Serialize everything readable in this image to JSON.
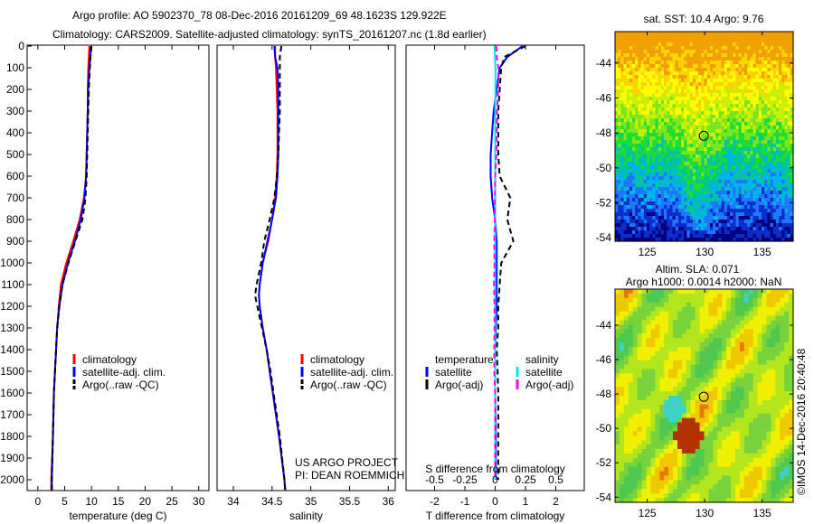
{
  "title_line1": "Argo profile: AO 5902370_78 08-Dec-2016 20161209_69 48.1623S 129.922E",
  "title_line2": "Climatology: CARS2009. Satellite-adjusted climatology: synTS_20161207.nc (1.8d earlier)",
  "credit": "©IMOS 14-Dec-2016 20:40:48",
  "project_line1": "US ARGO PROJECT",
  "project_line2": "PI: DEAN ROEMMICH",
  "colors": {
    "climatology": "#ff0000",
    "satellite": "#0000ff",
    "argo": "#000000",
    "sal_satellite": "#00e5ee",
    "sal_argo": "#ff00ff"
  },
  "chart_data": [
    {
      "type": "line",
      "name": "temperature",
      "xlabel": "temperature (deg C)",
      "ylabel": "",
      "xlim": [
        -2,
        31.9
      ],
      "ylim": [
        2050,
        0
      ],
      "xticks": [
        0,
        5,
        10,
        15,
        20,
        25,
        30
      ],
      "yticks": [
        0,
        100,
        200,
        300,
        400,
        500,
        600,
        700,
        800,
        900,
        1000,
        1100,
        1200,
        1300,
        1400,
        1500,
        1600,
        1700,
        1800,
        1900,
        2000
      ],
      "legend": [
        "climatology",
        "satellite-adj. clim.",
        "Argo(..raw -QC)"
      ],
      "legend_placement": "lower-center",
      "depth": [
        0,
        50,
        100,
        200,
        300,
        400,
        500,
        600,
        700,
        800,
        900,
        1000,
        1100,
        1200,
        1300,
        1400,
        1500,
        1600,
        1800,
        2000,
        2050
      ],
      "series": [
        {
          "name": "climatology",
          "color": "#ff0000",
          "dash": false,
          "values": [
            9.6,
            9.5,
            9.4,
            9.3,
            9.3,
            9.2,
            9.1,
            9.0,
            8.6,
            7.8,
            6.6,
            5.3,
            4.3,
            3.9,
            3.6,
            3.4,
            3.2,
            3.0,
            2.8,
            2.5,
            2.5
          ]
        },
        {
          "name": "satellite-adj. clim.",
          "color": "#0000ff",
          "dash": false,
          "values": [
            9.9,
            9.8,
            9.6,
            9.4,
            9.3,
            9.2,
            9.1,
            9.0,
            8.7,
            8.0,
            6.9,
            5.6,
            4.6,
            4.0,
            3.6,
            3.4,
            3.2,
            3.0,
            2.8,
            2.6,
            2.6
          ]
        },
        {
          "name": "Argo(..raw -QC)",
          "color": "#000000",
          "dash": true,
          "values": [
            10.0,
            9.8,
            9.7,
            9.5,
            9.4,
            9.3,
            9.2,
            9.1,
            8.9,
            8.3,
            7.0,
            5.7,
            4.6,
            4.0,
            3.6,
            3.4,
            3.2,
            3.0,
            2.8,
            2.6,
            2.6
          ]
        }
      ]
    },
    {
      "type": "line",
      "name": "salinity",
      "xlabel": "salinity",
      "ylabel": "",
      "xlim": [
        33.79,
        36.09
      ],
      "ylim": [
        2050,
        0
      ],
      "xticks": [
        34,
        34.5,
        35,
        35.5,
        36
      ],
      "legend": [
        "climatology",
        "satellite-adj. clim.",
        "Argo(..raw -QC)"
      ],
      "legend_placement": "lower-center",
      "depth": [
        0,
        50,
        100,
        200,
        300,
        400,
        500,
        600,
        700,
        800,
        900,
        1000,
        1100,
        1150,
        1200,
        1300,
        1400,
        1500,
        1600,
        1800,
        2000,
        2050
      ],
      "series": [
        {
          "name": "climatology",
          "color": "#ff0000",
          "dash": false,
          "values": [
            34.54,
            34.54,
            34.55,
            34.56,
            34.57,
            34.57,
            34.57,
            34.56,
            34.54,
            34.5,
            34.45,
            34.38,
            34.34,
            34.33,
            34.34,
            34.38,
            34.43,
            34.47,
            34.51,
            34.59,
            34.66,
            34.67
          ]
        },
        {
          "name": "satellite-adj. clim.",
          "color": "#0000ff",
          "dash": false,
          "values": [
            34.53,
            34.54,
            34.57,
            34.58,
            34.58,
            34.58,
            34.58,
            34.57,
            34.55,
            34.5,
            34.44,
            34.38,
            34.34,
            34.33,
            34.34,
            34.38,
            34.43,
            34.47,
            34.51,
            34.59,
            34.66,
            34.67
          ]
        },
        {
          "name": "Argo(..raw -QC)",
          "color": "#000000",
          "dash": true,
          "values": [
            34.62,
            34.6,
            34.6,
            34.6,
            34.6,
            34.59,
            34.58,
            34.56,
            34.53,
            34.47,
            34.4,
            34.36,
            34.3,
            34.28,
            34.31,
            34.37,
            34.43,
            34.48,
            34.52,
            34.6,
            34.66,
            34.67
          ]
        }
      ]
    },
    {
      "type": "line",
      "name": "differences",
      "xlabel": "T difference from climatology",
      "xlabel2": "S difference from climatology",
      "xlim": [
        -2.94,
        2.94
      ],
      "ylim": [
        2050,
        0
      ],
      "xticks": [
        -2,
        -1,
        0,
        1,
        2
      ],
      "xticks2": [
        "-0.5",
        "-0.25",
        "0",
        "0.25",
        "0.5"
      ],
      "xticks2_values": [
        -0.5,
        -0.25,
        0,
        0.25,
        0.5
      ],
      "legend_headers": [
        "temperature",
        "salinity"
      ],
      "legend": [
        "satellite",
        "Argo(-adj)",
        "satellite",
        "Argo(-adj)"
      ],
      "legend_placement": "lower-center",
      "depth": [
        0,
        50,
        100,
        200,
        300,
        400,
        500,
        600,
        700,
        800,
        900,
        1000,
        1100,
        1200,
        1300,
        1400,
        1500,
        1600,
        1800,
        2000
      ],
      "series": [
        {
          "name": "temperature satellite",
          "color": "#0000ff",
          "dash": false,
          "values": [
            0.9,
            0.4,
            0.15,
            0.05,
            -0.05,
            -0.1,
            -0.15,
            -0.15,
            -0.1,
            0.0,
            0.05,
            0.05,
            0.05,
            0.05,
            0.02,
            0.0,
            0.0,
            0.0,
            0.02,
            0.02
          ]
        },
        {
          "name": "temperature Argo(-adj)",
          "color": "#000000",
          "dash": true,
          "values": [
            1.0,
            0.3,
            0.2,
            0.15,
            0.1,
            0.1,
            0.1,
            0.15,
            0.5,
            0.4,
            0.6,
            0.2,
            0.15,
            0.1,
            0.1,
            0.05,
            0.08,
            0.1,
            0.1,
            0.1
          ]
        },
        {
          "name": "salinity satellite",
          "color": "#00e5ee",
          "dash": false,
          "values": [
            -0.02,
            -0.01,
            0.01,
            0.01,
            0.0,
            0.0,
            0.0,
            0.0,
            0.0,
            0.0,
            0.0,
            0.0,
            0.0,
            0.0,
            0.0,
            0.0,
            0.0,
            0.0,
            0.0,
            0.0
          ]
        },
        {
          "name": "salinity Argo(-adj)",
          "color": "#ff00ff",
          "dash": true,
          "values": [
            0.04,
            0.05,
            0.1,
            0.1,
            0.06,
            0.05,
            0.04,
            0.0,
            -0.01,
            -0.01,
            -0.03,
            -0.02,
            -0.04,
            -0.02,
            -0.02,
            -0.03,
            -0.03,
            0.0,
            0.0,
            0.0
          ]
        }
      ]
    },
    {
      "type": "heatmap",
      "name": "sst-map",
      "title": "sat. SST: 10.4  Argo: 9.76",
      "xlim": [
        122.2,
        137.7
      ],
      "ylim": [
        -54.2,
        -42.2
      ],
      "xticks": [
        125,
        130,
        135
      ],
      "yticks": [
        -44,
        -46,
        -48,
        -50,
        -52,
        -54
      ],
      "marker": {
        "lon": 129.922,
        "lat": -48.1623
      }
    },
    {
      "type": "heatmap",
      "name": "sla-map",
      "title": "Altim. SLA: 0.071",
      "subtitle": "Argo h1000: 0.0014 h2000: NaN",
      "xlim": [
        122.2,
        137.7
      ],
      "ylim": [
        -54.3,
        -41.9
      ],
      "xticks": [
        125,
        130,
        135
      ],
      "yticks": [
        -44,
        -46,
        -48,
        -50,
        -52,
        -54
      ],
      "marker": {
        "lon": 129.922,
        "lat": -48.1623
      }
    }
  ]
}
